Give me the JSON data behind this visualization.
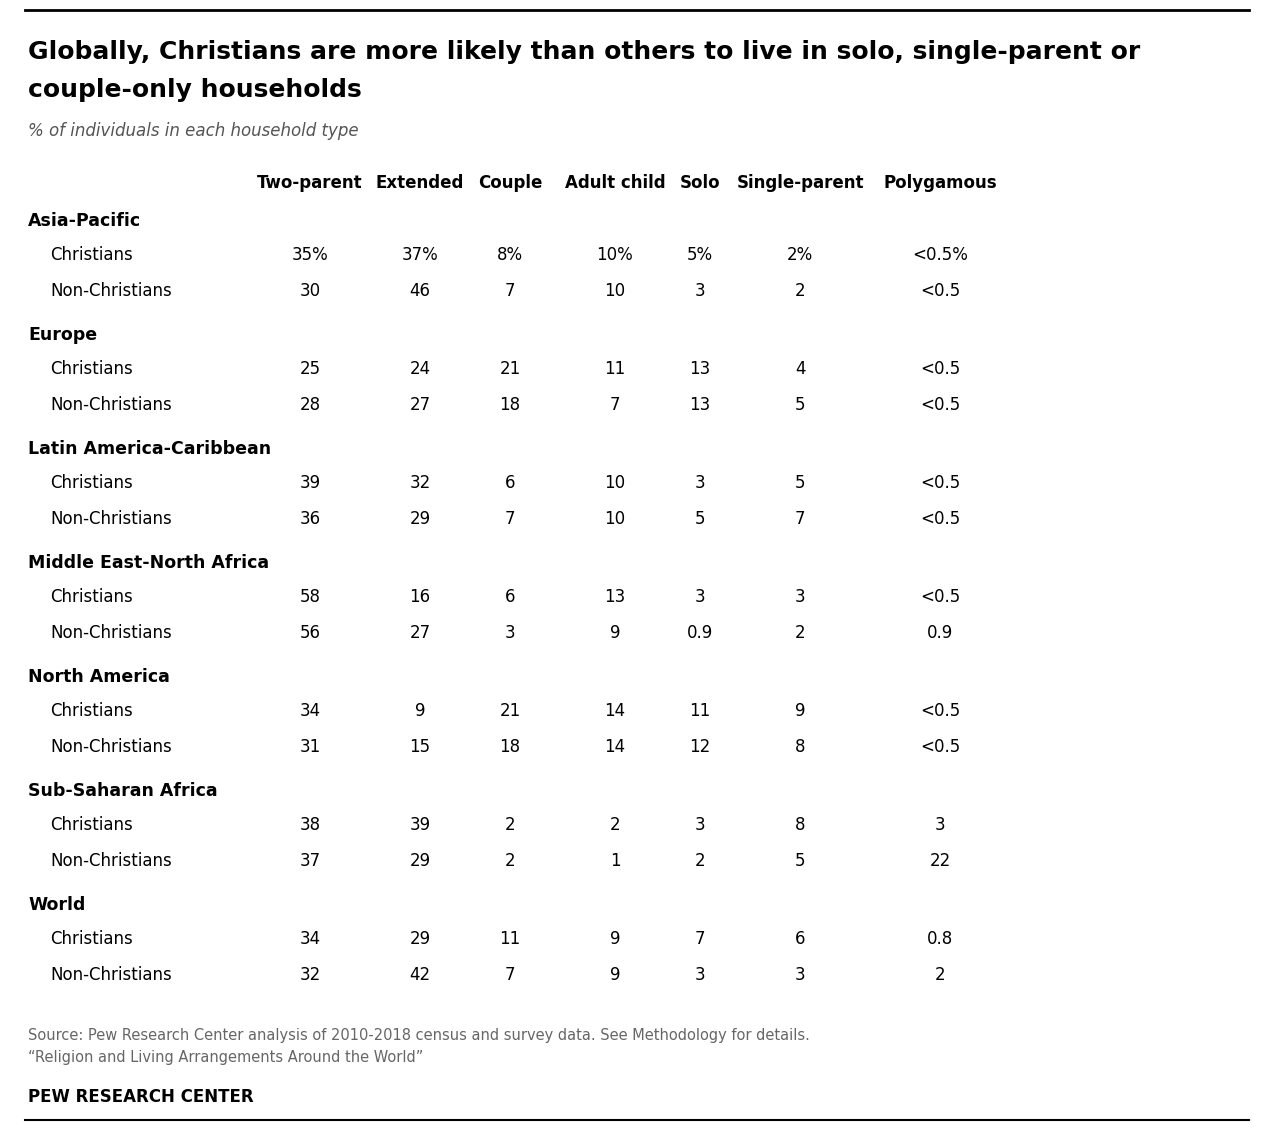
{
  "title_line1": "Globally, Christians are more likely than others to live in solo, single-parent or",
  "title_line2": "couple-only households",
  "subtitle": "% of individuals in each household type",
  "columns": [
    "Two-parent",
    "Extended",
    "Couple",
    "Adult child",
    "Solo",
    "Single-parent",
    "Polygamous"
  ],
  "regions": [
    {
      "name": "Asia-Pacific",
      "rows": [
        {
          "label": "Christians",
          "values": [
            "35%",
            "37%",
            "8%",
            "10%",
            "5%",
            "2%",
            "<0.5%"
          ]
        },
        {
          "label": "Non-Christians",
          "values": [
            "30",
            "46",
            "7",
            "10",
            "3",
            "2",
            "<0.5"
          ]
        }
      ]
    },
    {
      "name": "Europe",
      "rows": [
        {
          "label": "Christians",
          "values": [
            "25",
            "24",
            "21",
            "11",
            "13",
            "4",
            "<0.5"
          ]
        },
        {
          "label": "Non-Christians",
          "values": [
            "28",
            "27",
            "18",
            "7",
            "13",
            "5",
            "<0.5"
          ]
        }
      ]
    },
    {
      "name": "Latin America-Caribbean",
      "rows": [
        {
          "label": "Christians",
          "values": [
            "39",
            "32",
            "6",
            "10",
            "3",
            "5",
            "<0.5"
          ]
        },
        {
          "label": "Non-Christians",
          "values": [
            "36",
            "29",
            "7",
            "10",
            "5",
            "7",
            "<0.5"
          ]
        }
      ]
    },
    {
      "name": "Middle East-North Africa",
      "rows": [
        {
          "label": "Christians",
          "values": [
            "58",
            "16",
            "6",
            "13",
            "3",
            "3",
            "<0.5"
          ]
        },
        {
          "label": "Non-Christians",
          "values": [
            "56",
            "27",
            "3",
            "9",
            "0.9",
            "2",
            "0.9"
          ]
        }
      ]
    },
    {
      "name": "North America",
      "rows": [
        {
          "label": "Christians",
          "values": [
            "34",
            "9",
            "21",
            "14",
            "11",
            "9",
            "<0.5"
          ]
        },
        {
          "label": "Non-Christians",
          "values": [
            "31",
            "15",
            "18",
            "14",
            "12",
            "8",
            "<0.5"
          ]
        }
      ]
    },
    {
      "name": "Sub-Saharan Africa",
      "rows": [
        {
          "label": "Christians",
          "values": [
            "38",
            "39",
            "2",
            "2",
            "3",
            "8",
            "3"
          ]
        },
        {
          "label": "Non-Christians",
          "values": [
            "37",
            "29",
            "2",
            "1",
            "2",
            "5",
            "22"
          ]
        }
      ]
    },
    {
      "name": "World",
      "rows": [
        {
          "label": "Christians",
          "values": [
            "34",
            "29",
            "11",
            "9",
            "7",
            "6",
            "0.8"
          ]
        },
        {
          "label": "Non-Christians",
          "values": [
            "32",
            "42",
            "7",
            "9",
            "3",
            "3",
            "2"
          ]
        }
      ]
    }
  ],
  "source_line1": "Source: Pew Research Center analysis of 2010-2018 census and survey data. See Methodology for details.",
  "source_line2": "“Religion and Living Arrangements Around the World”",
  "brand": "PEW RESEARCH CENTER",
  "bg_color": "#ffffff",
  "title_color": "#000000",
  "subtitle_color": "#555555",
  "header_color": "#000000",
  "region_color": "#000000",
  "data_color": "#000000",
  "source_color": "#666666",
  "line_color": "#000000"
}
